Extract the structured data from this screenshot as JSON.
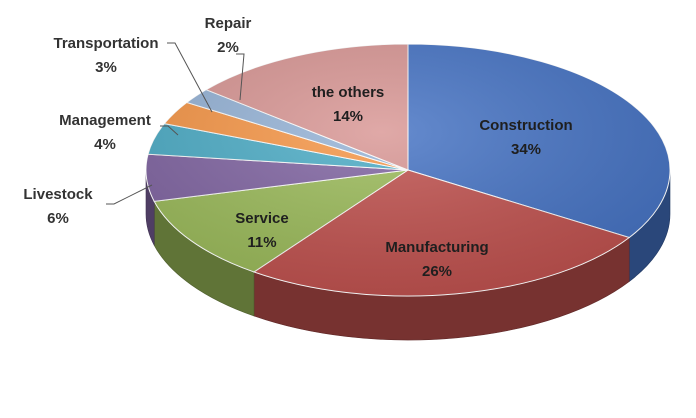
{
  "chart_data": {
    "type": "pie",
    "title": "",
    "slices": [
      {
        "name": "Construction",
        "value": 34,
        "label": "34%",
        "color": "#4472c4"
      },
      {
        "name": "Manufacturing",
        "value": 26,
        "label": "26%",
        "color": "#c0504d"
      },
      {
        "name": "Service",
        "value": 11,
        "label": "11%",
        "color": "#9bbb59"
      },
      {
        "name": "Livestock",
        "value": 6,
        "label": "6%",
        "color": "#8064a2"
      },
      {
        "name": "Management",
        "value": 4,
        "label": "4%",
        "color": "#4bacc6"
      },
      {
        "name": "Transportation",
        "value": 3,
        "label": "3%",
        "color": "#f79646"
      },
      {
        "name": "Repair",
        "value": 2,
        "label": "2%",
        "color": "#95b3d7"
      },
      {
        "name": "the others",
        "value": 14,
        "label": "14%",
        "color": "#d99694"
      }
    ],
    "style": "3d-exploded-none",
    "legend": "none"
  }
}
